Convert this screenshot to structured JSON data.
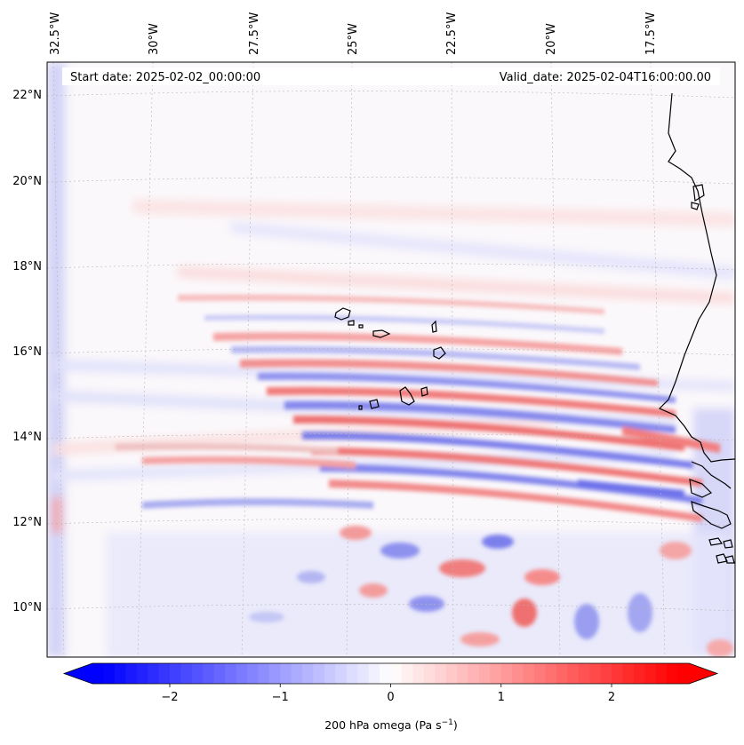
{
  "map": {
    "start_date_label": "Start date: 2025-02-02_00:00:00",
    "valid_date_label": "Valid_date: 2025-02-04T16:00:00.00",
    "lon_labels": [
      "32.5°W",
      "30°W",
      "27.5°W",
      "25°W",
      "22.5°W",
      "20°W",
      "17.5°W"
    ],
    "lat_labels": [
      "22°N",
      "20°N",
      "18°N",
      "16°N",
      "14°N",
      "12°N",
      "10°N"
    ],
    "field": "200 hPa omega",
    "coastline_color": "#000000",
    "gridline_color": "#b0b0b0"
  },
  "colorbar": {
    "label_main": "200 hPa omega (Pa s",
    "label_sup": "−1",
    "label_close": ")",
    "tick_labels": [
      "−2",
      "−1",
      "0",
      "1",
      "2"
    ],
    "tick_values": [
      -2,
      -1,
      0,
      1,
      2
    ],
    "range": [
      -2.7,
      2.7
    ],
    "colors": {
      "min": "#0000ff",
      "mid": "#ffffff",
      "max": "#ff0000"
    }
  }
}
